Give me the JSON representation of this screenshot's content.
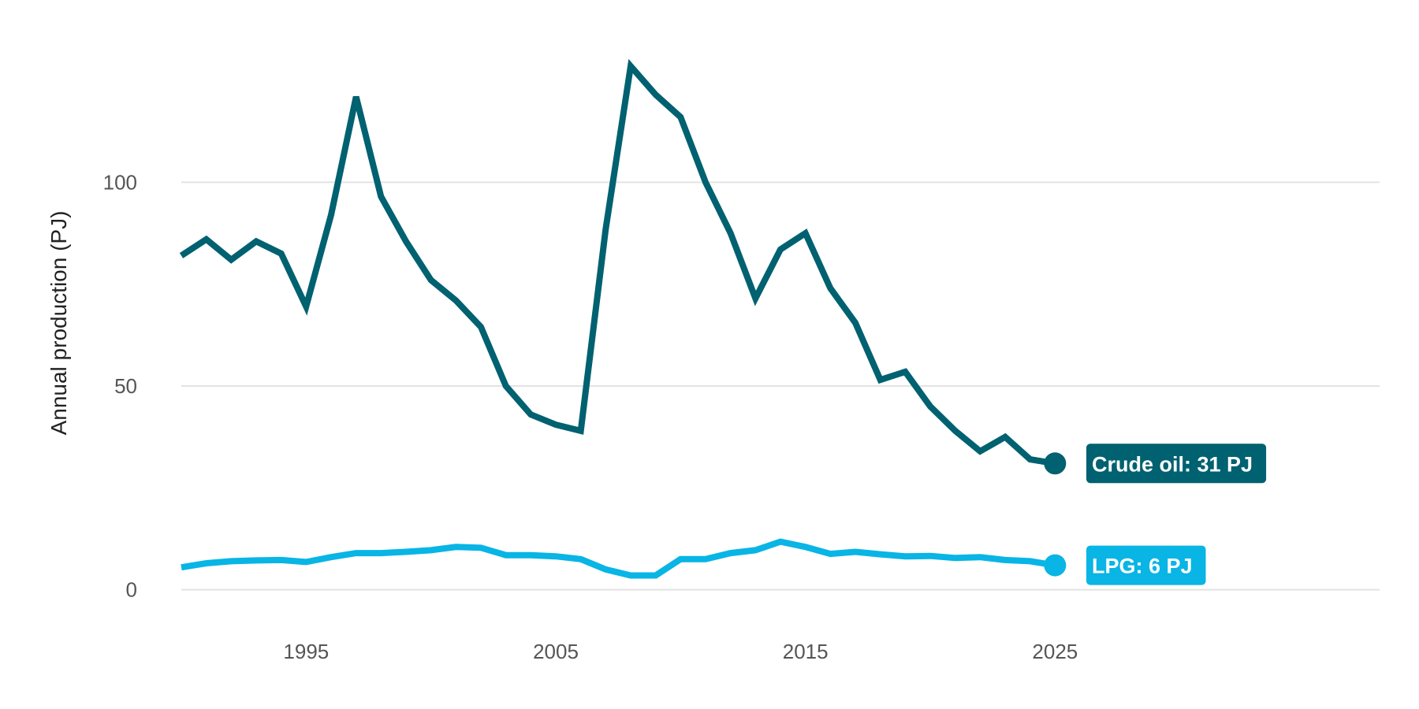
{
  "chart_data": {
    "type": "line",
    "title": "",
    "xlabel": "",
    "ylabel": "Annual production (PJ)",
    "xlim": [
      1990,
      2038
    ],
    "ylim": [
      -8,
      137
    ],
    "x_ticks": [
      1995,
      2005,
      2015,
      2025
    ],
    "y_ticks": [
      0,
      50,
      100
    ],
    "grid": "horizontal",
    "legend": "none",
    "x": [
      1990,
      1991,
      1992,
      1993,
      1994,
      1995,
      1996,
      1997,
      1998,
      1999,
      2000,
      2001,
      2002,
      2003,
      2004,
      2005,
      2006,
      2007,
      2008,
      2009,
      2010,
      2011,
      2012,
      2013,
      2014,
      2015,
      2016,
      2017,
      2018,
      2019,
      2020,
      2021,
      2022,
      2023,
      2024,
      2025
    ],
    "series": [
      {
        "name": "Crude oil",
        "color": "#006170",
        "end_label": "Crude oil: 31 PJ",
        "values": [
          82,
          86,
          81,
          85.5,
          82.5,
          69.5,
          92,
          121,
          96.5,
          85.5,
          76,
          71,
          64.5,
          50,
          43,
          40.5,
          39,
          88.5,
          128.5,
          121.5,
          116,
          100,
          87.5,
          71.5,
          83.5,
          87.5,
          74,
          65.5,
          51.5,
          53.5,
          45,
          39,
          34,
          37.5,
          32,
          31
        ]
      },
      {
        "name": "LPG",
        "color": "#08b5e5",
        "end_label": "LPG: 6 PJ",
        "values": [
          5.5,
          6.5,
          7,
          7.2,
          7.3,
          6.8,
          8,
          9,
          9,
          9.3,
          9.7,
          10.5,
          10.3,
          8.5,
          8.5,
          8.2,
          7.5,
          5,
          3.5,
          3.5,
          7.5,
          7.5,
          9,
          9.7,
          11.8,
          10.5,
          8.8,
          9.3,
          8.7,
          8.2,
          8.3,
          7.8,
          8,
          7.3,
          7,
          6
        ]
      }
    ]
  }
}
